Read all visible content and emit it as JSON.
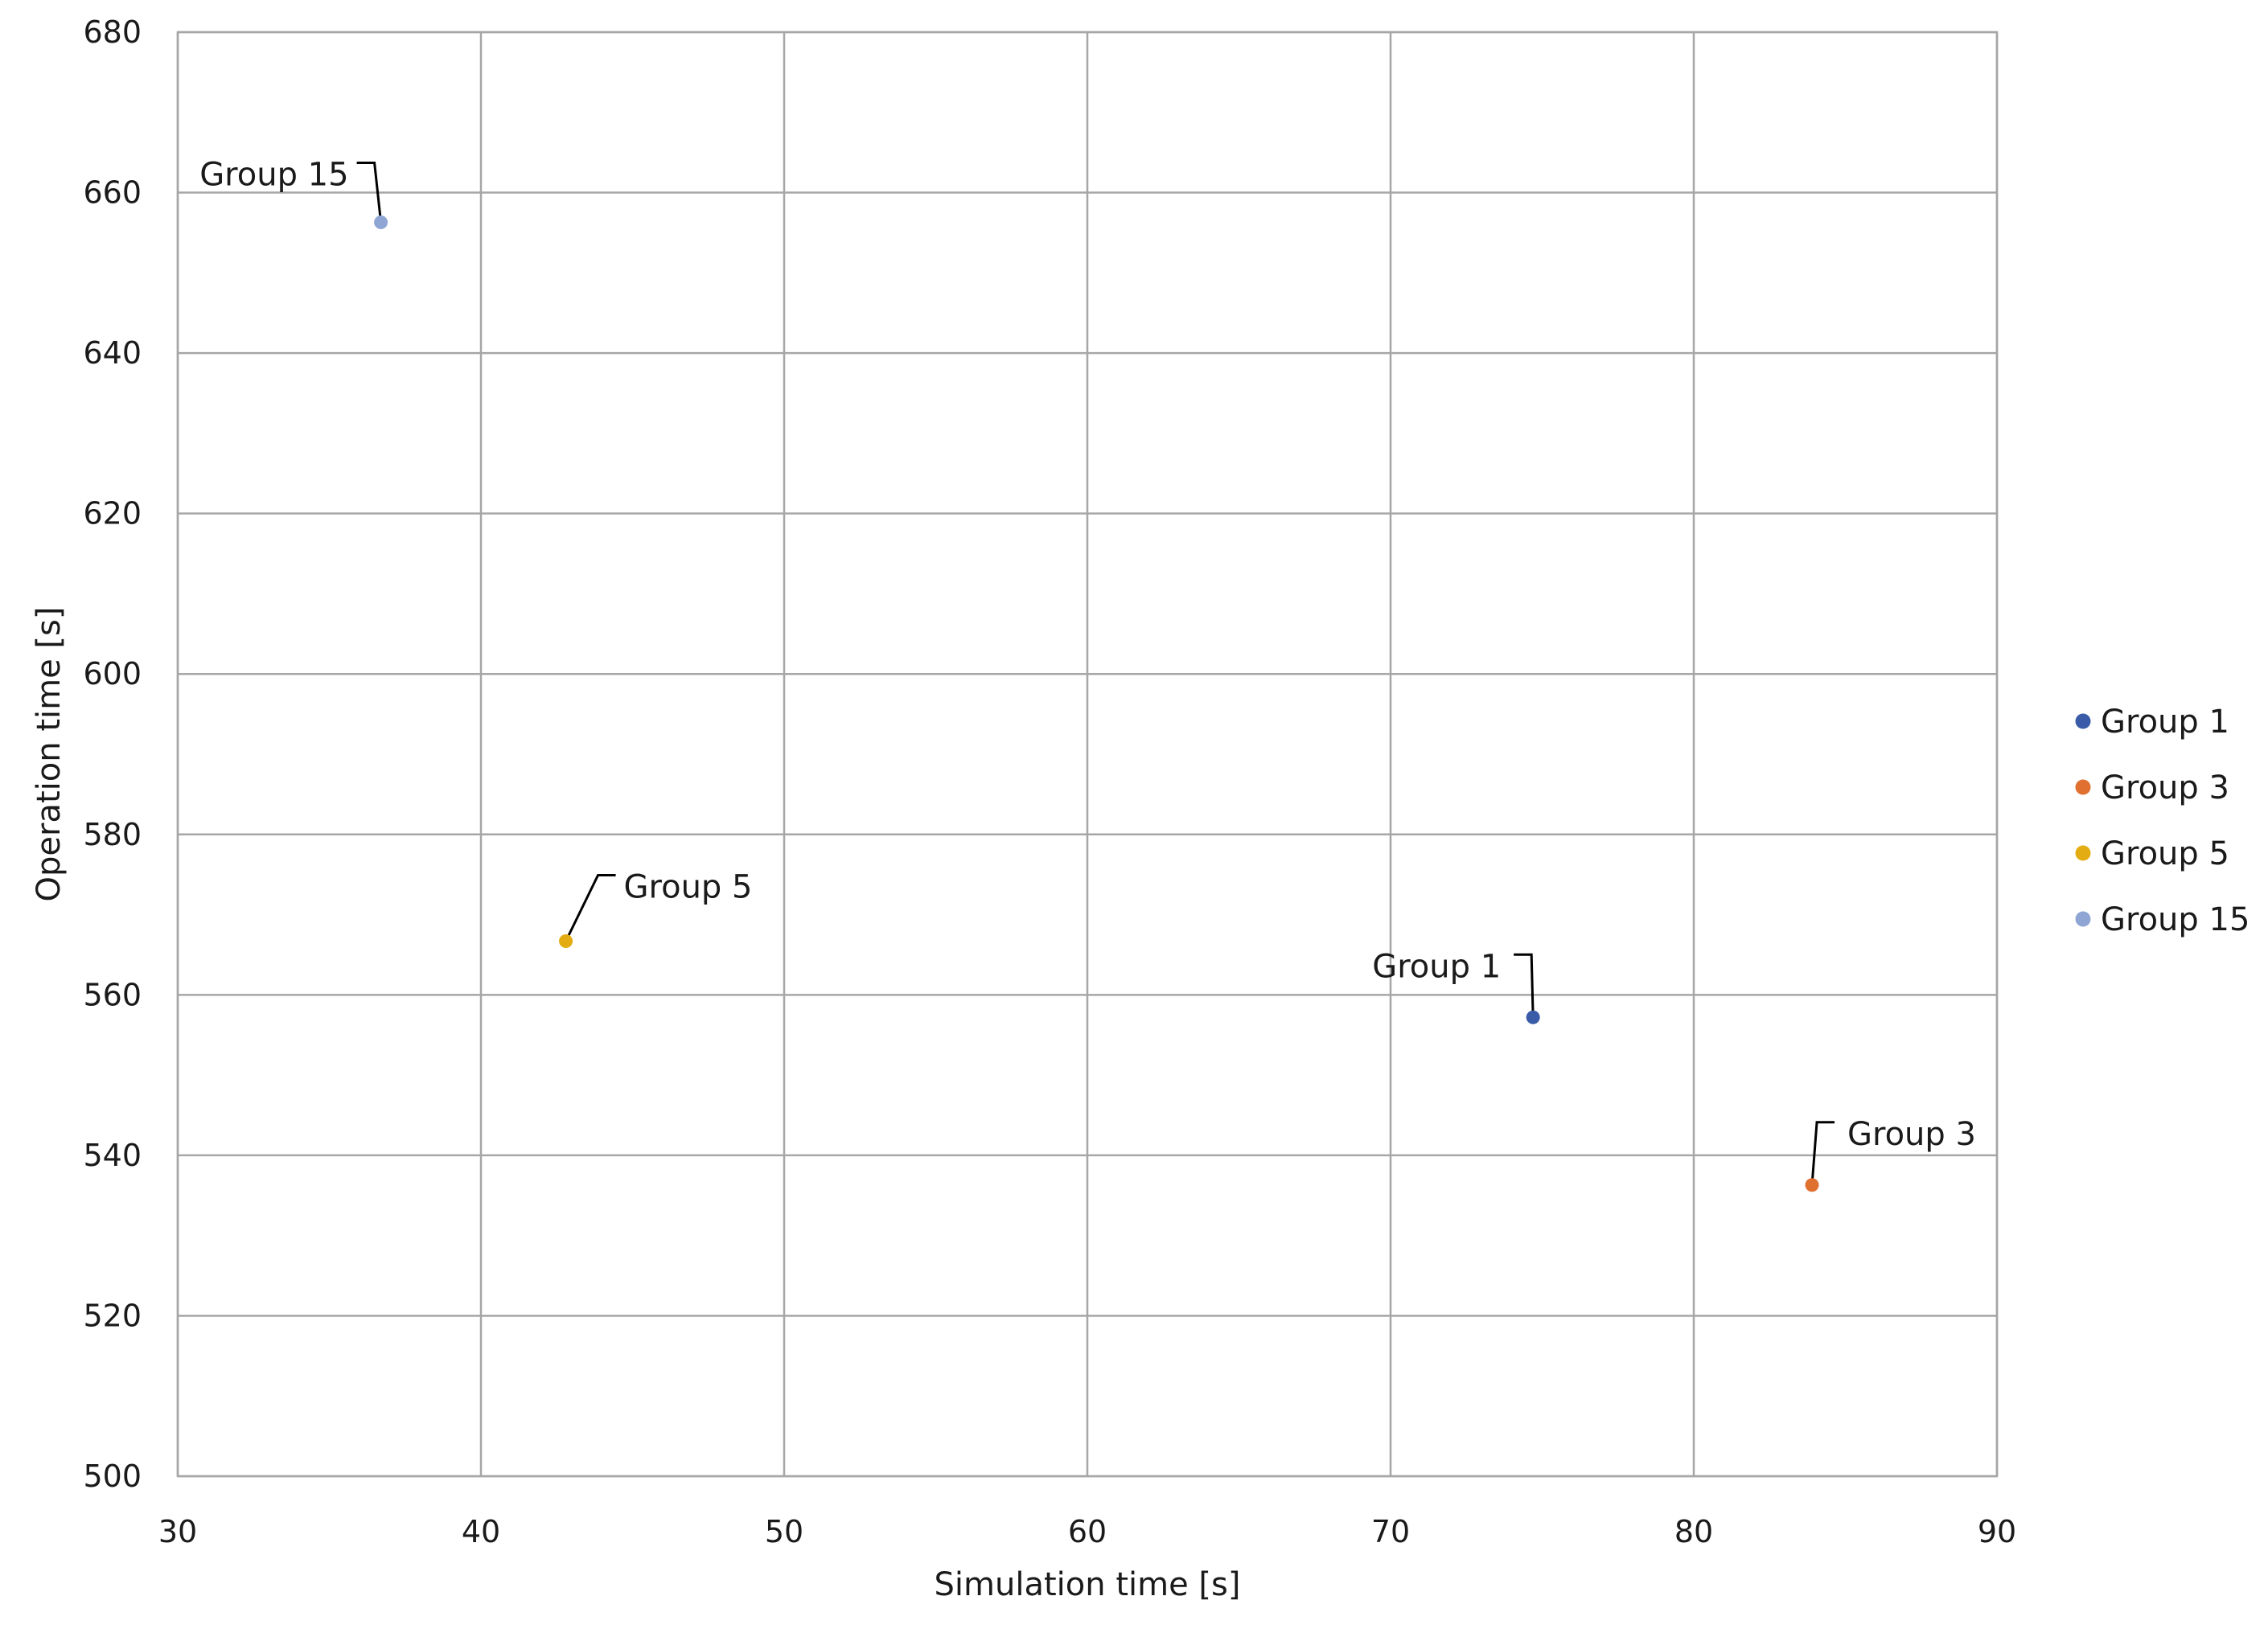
{
  "chart_data": {
    "type": "scatter",
    "xlabel": "Simulation time [s]",
    "ylabel": "Operation time [s]",
    "xlim": [
      30,
      90
    ],
    "ylim": [
      500,
      680
    ],
    "xticks": [
      30,
      40,
      50,
      60,
      70,
      80,
      90
    ],
    "yticks": [
      500,
      520,
      540,
      560,
      580,
      600,
      620,
      640,
      660,
      680
    ],
    "grid": true,
    "legend_position": "right",
    "series": [
      {
        "name": "Group 1",
        "color": "#3a5ba8",
        "x": 74.7,
        "y": 557.2,
        "label": "Group 1"
      },
      {
        "name": "Group 3",
        "color": "#e07030",
        "x": 83.9,
        "y": 536.3,
        "label": "Group 3"
      },
      {
        "name": "Group 5",
        "color": "#e3ac12",
        "x": 42.8,
        "y": 566.7,
        "label": "Group 5"
      },
      {
        "name": "Group 15",
        "color": "#8fa5d4",
        "x": 36.7,
        "y": 656.3,
        "label": "Group 15"
      }
    ]
  }
}
